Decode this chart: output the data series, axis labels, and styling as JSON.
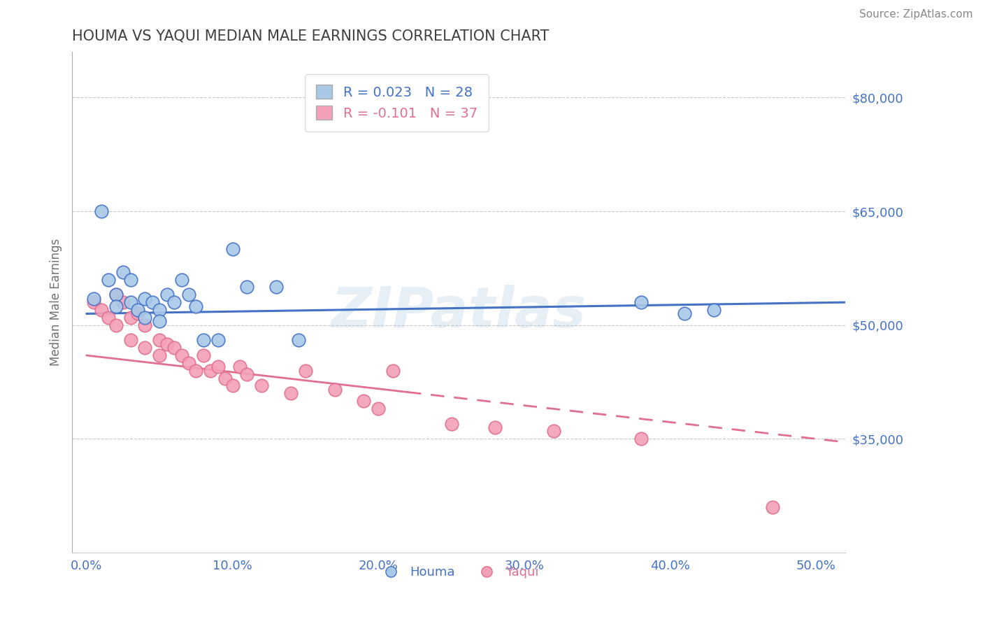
{
  "title": "HOUMA VS YAQUI MEDIAN MALE EARNINGS CORRELATION CHART",
  "source": "Source: ZipAtlas.com",
  "ylabel_label": "Median Male Earnings",
  "x_tick_labels": [
    "0.0%",
    "10.0%",
    "20.0%",
    "30.0%",
    "40.0%",
    "50.0%"
  ],
  "x_ticks": [
    0.0,
    0.1,
    0.2,
    0.3,
    0.4,
    0.5
  ],
  "y_ticks": [
    35000,
    50000,
    65000,
    80000
  ],
  "y_tick_labels": [
    "$35,000",
    "$50,000",
    "$65,000",
    "$80,000"
  ],
  "xlim": [
    -0.01,
    0.52
  ],
  "ylim": [
    20000,
    86000
  ],
  "houma_R": 0.023,
  "houma_N": 28,
  "yaqui_R": -0.101,
  "yaqui_N": 37,
  "houma_color": "#a8c8e8",
  "houma_line_color": "#4472c4",
  "yaqui_color": "#f4a0b8",
  "yaqui_line_color": "#e07090",
  "background_color": "#ffffff",
  "grid_color": "#c8c8c8",
  "title_color": "#404040",
  "axis_label_color": "#707070",
  "tick_label_color": "#4472c4",
  "source_color": "#888888",
  "houma_x": [
    0.005,
    0.01,
    0.015,
    0.02,
    0.02,
    0.025,
    0.03,
    0.03,
    0.035,
    0.04,
    0.04,
    0.045,
    0.05,
    0.05,
    0.055,
    0.06,
    0.065,
    0.07,
    0.075,
    0.08,
    0.09,
    0.1,
    0.11,
    0.13,
    0.145,
    0.38,
    0.41,
    0.43
  ],
  "houma_y": [
    53500,
    65000,
    56000,
    54000,
    52500,
    57000,
    56000,
    53000,
    52000,
    53500,
    51000,
    53000,
    52000,
    50500,
    54000,
    53000,
    56000,
    54000,
    52500,
    48000,
    48000,
    60000,
    55000,
    55000,
    48000,
    53000,
    51500,
    52000
  ],
  "yaqui_x": [
    0.005,
    0.01,
    0.015,
    0.02,
    0.02,
    0.025,
    0.03,
    0.03,
    0.035,
    0.04,
    0.04,
    0.05,
    0.05,
    0.055,
    0.06,
    0.065,
    0.07,
    0.075,
    0.08,
    0.085,
    0.09,
    0.095,
    0.1,
    0.105,
    0.11,
    0.12,
    0.14,
    0.15,
    0.17,
    0.19,
    0.2,
    0.21,
    0.25,
    0.28,
    0.32,
    0.38,
    0.47
  ],
  "yaqui_y": [
    53000,
    52000,
    51000,
    54000,
    50000,
    53000,
    51000,
    48000,
    51500,
    50000,
    47000,
    48000,
    46000,
    47500,
    47000,
    46000,
    45000,
    44000,
    46000,
    44000,
    44500,
    43000,
    42000,
    44500,
    43500,
    42000,
    41000,
    44000,
    41500,
    40000,
    39000,
    44000,
    37000,
    36500,
    36000,
    35000,
    26000
  ],
  "houma_line_y_intercept": 51500,
  "houma_line_slope": 1500,
  "yaqui_line_y_intercept": 46000,
  "yaqui_line_slope": -22000,
  "yaqui_dash_split": 0.22,
  "watermark_text": "ZIPatlas",
  "figsize": [
    14.06,
    8.92
  ],
  "dpi": 100
}
